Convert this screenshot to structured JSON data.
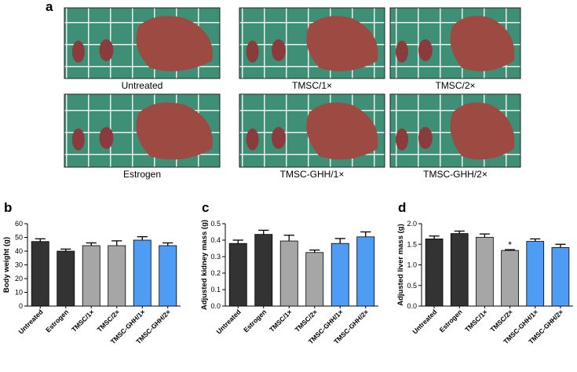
{
  "figure": {
    "panel_a": {
      "label": "a",
      "captions": [
        "Untreated",
        "TMSC/1×",
        "TMSC/2×",
        "Estrogen",
        "TMSC-GHH/1×",
        "TMSC-GHH/2×"
      ]
    }
  },
  "chart_data": [
    {
      "type": "bar",
      "panel": "b",
      "ylabel": "Body weight (g)",
      "categories": [
        "Untreated",
        "Estrogen",
        "TMSC/1×",
        "TMSC/2×",
        "TMSC-GHH/1×",
        "TMSC-GHH/2×"
      ],
      "values": [
        47,
        40,
        44,
        44,
        48,
        44
      ],
      "errors": [
        2,
        1.5,
        2,
        3.5,
        2.5,
        2
      ],
      "colors": [
        "#333333",
        "#333333",
        "#a6a6a6",
        "#a6a6a6",
        "#4f9cf5",
        "#4f9cf5"
      ],
      "ylim": [
        0,
        60
      ],
      "yticks": [
        0,
        10,
        20,
        30,
        40,
        50,
        60
      ]
    },
    {
      "type": "bar",
      "panel": "c",
      "ylabel": "Adjusted kidney mass (g)",
      "categories": [
        "Untreated",
        "Estrogen",
        "TMSC/1×",
        "TMSC/2×",
        "TMSC-GHH/1×",
        "TMSC-GHH/2×"
      ],
      "values": [
        0.38,
        0.435,
        0.395,
        0.325,
        0.38,
        0.42
      ],
      "errors": [
        0.02,
        0.025,
        0.035,
        0.015,
        0.03,
        0.03
      ],
      "colors": [
        "#333333",
        "#333333",
        "#a6a6a6",
        "#a6a6a6",
        "#4f9cf5",
        "#4f9cf5"
      ],
      "ylim": [
        0,
        0.5
      ],
      "yticks": [
        {
          "value": 0,
          "label": "0.0"
        },
        0.1,
        0.2,
        0.3,
        0.4,
        0.5
      ]
    },
    {
      "type": "bar",
      "panel": "d",
      "ylabel": "Adjusted liver mass (g)",
      "categories": [
        "Untreated",
        "Estrogen",
        "TMSC/1×",
        "TMSC/2×",
        "TMSC-GHH/1×",
        "TMSC-GHH/2×"
      ],
      "values": [
        1.63,
        1.76,
        1.67,
        1.35,
        1.57,
        1.42
      ],
      "errors": [
        0.07,
        0.06,
        0.08,
        0.02,
        0.06,
        0.08
      ],
      "significance": [
        null,
        null,
        null,
        "*",
        null,
        null
      ],
      "colors": [
        "#333333",
        "#333333",
        "#a6a6a6",
        "#a6a6a6",
        "#4f9cf5",
        "#4f9cf5"
      ],
      "ylim": [
        0,
        2
      ],
      "yticks": [
        {
          "value": 0,
          "label": "0.0"
        },
        {
          "value": 0.5,
          "label": "0.5"
        },
        {
          "value": 1,
          "label": "1.0"
        },
        {
          "value": 1.5,
          "label": "1.5"
        },
        {
          "value": 2,
          "label": "2.0"
        }
      ]
    }
  ]
}
